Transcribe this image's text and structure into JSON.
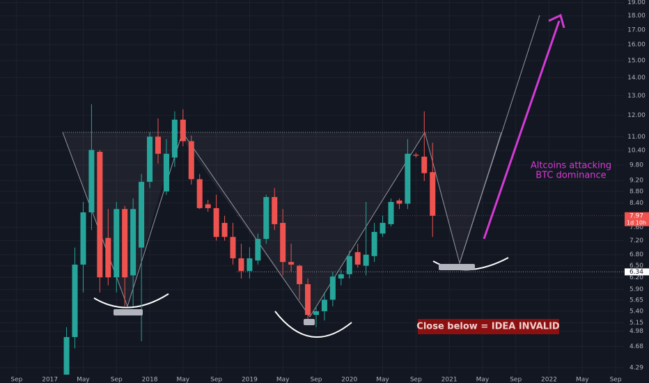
{
  "chart_data": {
    "type": "candlestick",
    "log_scale": true,
    "grid": true,
    "up_color": "#26a69a",
    "down_color": "#ef5350",
    "x": [
      "2017-03",
      "2017-04",
      "2017-05",
      "2017-06",
      "2017-07",
      "2017-08",
      "2017-09",
      "2017-10",
      "2017-11",
      "2017-12",
      "2018-01",
      "2018-02",
      "2018-03",
      "2018-04",
      "2018-05",
      "2018-06",
      "2018-07",
      "2018-08",
      "2018-09",
      "2018-10",
      "2018-11",
      "2018-12",
      "2019-01",
      "2019-02",
      "2019-03",
      "2019-04",
      "2019-05",
      "2019-06",
      "2019-07",
      "2019-08",
      "2019-09",
      "2019-10",
      "2019-11",
      "2019-12",
      "2020-01",
      "2020-02",
      "2020-03",
      "2020-04",
      "2020-05",
      "2020-06",
      "2020-07",
      "2020-08",
      "2020-09",
      "2020-10",
      "2020-11"
    ],
    "open": [
      4.14,
      4.86,
      6.53,
      8.08,
      10.34,
      7.28,
      6.2,
      8.19,
      6.25,
      7.0,
      9.15,
      11.0,
      8.8,
      10.1,
      11.79,
      10.8,
      9.25,
      8.35,
      8.22,
      7.74,
      7.31,
      6.7,
      6.36,
      6.64,
      7.25,
      8.6,
      7.74,
      6.6,
      6.5,
      6.03,
      5.32,
      5.4,
      5.66,
      6.17,
      6.28,
      6.87,
      6.5,
      6.76,
      7.41,
      7.7,
      8.48,
      8.37,
      10.22,
      10.14,
      9.52
    ],
    "high": [
      5.06,
      7.0,
      8.43,
      12.55,
      10.42,
      8.19,
      8.43,
      8.3,
      8.55,
      9.45,
      11.2,
      11.85,
      10.89,
      12.2,
      12.3,
      11.05,
      9.45,
      8.5,
      8.68,
      7.97,
      7.74,
      7.11,
      7.01,
      7.41,
      8.68,
      8.92,
      8.19,
      7.11,
      6.53,
      6.17,
      5.51,
      5.83,
      6.34,
      6.4,
      6.91,
      7.11,
      8.43,
      7.74,
      7.97,
      8.55,
      8.55,
      10.89,
      10.3,
      12.2,
      10.73
    ],
    "low": [
      4.1,
      4.64,
      5.83,
      7.52,
      5.83,
      6.0,
      5.83,
      5.51,
      5.51,
      4.78,
      8.92,
      9.86,
      8.68,
      9.72,
      10.58,
      9.05,
      8.19,
      8.1,
      7.2,
      7.2,
      6.53,
      6.17,
      6.17,
      6.53,
      7.11,
      7.52,
      6.25,
      6.34,
      5.66,
      5.2,
      5.06,
      5.2,
      5.51,
      6.0,
      6.17,
      6.45,
      6.25,
      6.6,
      7.31,
      7.63,
      8.19,
      8.19,
      10.1,
      9.18,
      7.31
    ],
    "close": [
      4.86,
      6.53,
      8.08,
      10.42,
      6.2,
      6.2,
      8.19,
      6.2,
      8.19,
      9.15,
      11.0,
      10.26,
      10.26,
      11.79,
      10.8,
      9.25,
      8.22,
      8.22,
      7.31,
      7.31,
      6.7,
      6.36,
      6.7,
      7.25,
      8.6,
      7.7,
      6.6,
      6.53,
      6.03,
      5.32,
      5.4,
      5.66,
      6.22,
      6.28,
      6.76,
      6.53,
      6.8,
      7.46,
      7.74,
      8.43,
      8.37,
      10.26,
      10.18,
      9.48,
      7.97
    ],
    "xlim": [
      "2016-07",
      "2022-10"
    ],
    "xticks": [
      {
        "value": "2016-09",
        "label": "Sep"
      },
      {
        "value": "2017-01",
        "label": "2017"
      },
      {
        "value": "2017-05",
        "label": "May"
      },
      {
        "value": "2017-09",
        "label": "Sep"
      },
      {
        "value": "2018-01",
        "label": "2018"
      },
      {
        "value": "2018-05",
        "label": "May"
      },
      {
        "value": "2018-09",
        "label": "Sep"
      },
      {
        "value": "2019-01",
        "label": "2019"
      },
      {
        "value": "2019-05",
        "label": "May"
      },
      {
        "value": "2019-09",
        "label": "Sep"
      },
      {
        "value": "2020-01",
        "label": "2020"
      },
      {
        "value": "2020-05",
        "label": "May"
      },
      {
        "value": "2020-09",
        "label": "Sep"
      },
      {
        "value": "2021-01",
        "label": "2021"
      },
      {
        "value": "2021-05",
        "label": "May"
      },
      {
        "value": "2021-09",
        "label": "Sep"
      },
      {
        "value": "2022-01",
        "label": "2022"
      },
      {
        "value": "2022-05",
        "label": "May"
      },
      {
        "value": "2022-09",
        "label": "Sep"
      }
    ],
    "ylim": [
      4.17,
      19.2
    ],
    "yticks": [
      {
        "value": 4.29,
        "label": "4.29"
      },
      {
        "value": 4.68,
        "label": "4.68"
      },
      {
        "value": 4.98,
        "label": "4.98"
      },
      {
        "value": 5.15,
        "label": "5.15"
      },
      {
        "value": 5.4,
        "label": "5.40"
      },
      {
        "value": 5.65,
        "label": "5.65"
      },
      {
        "value": 5.9,
        "label": "5.90"
      },
      {
        "value": 6.2,
        "label": "6.20"
      },
      {
        "value": 6.5,
        "label": "6.50"
      },
      {
        "value": 6.8,
        "label": "6.80"
      },
      {
        "value": 7.2,
        "label": "7.20"
      },
      {
        "value": 7.6,
        "label": "7.60"
      },
      {
        "value": 8.4,
        "label": "8.40"
      },
      {
        "value": 8.8,
        "label": "8.80"
      },
      {
        "value": 9.2,
        "label": "9.20"
      },
      {
        "value": 9.8,
        "label": "9.80"
      },
      {
        "value": 10.4,
        "label": "10.40"
      },
      {
        "value": 11,
        "label": "11.00"
      },
      {
        "value": 12,
        "label": "12.00"
      },
      {
        "value": 13,
        "label": "13.00"
      },
      {
        "value": 14,
        "label": "14.00"
      },
      {
        "value": 15,
        "label": "15.00"
      },
      {
        "value": 16,
        "label": "16.00"
      },
      {
        "value": 17,
        "label": "17.00"
      },
      {
        "value": 18,
        "label": "18.00"
      },
      {
        "value": 19,
        "label": "19.00"
      }
    ],
    "price_labels": [
      {
        "value": 7.97,
        "label": "7.97",
        "countdown": "1d 10h",
        "color": "#ef5350"
      },
      {
        "value": 6.34,
        "label": "6.34",
        "color": "#ffffff"
      }
    ],
    "annotations": [
      {
        "lines": [
          "Altcoins attacking",
          "BTC dominance"
        ],
        "color": "#d63ad6"
      },
      {
        "text": "Close below = IDEA INVALID",
        "color": "#8c1010"
      }
    ]
  }
}
